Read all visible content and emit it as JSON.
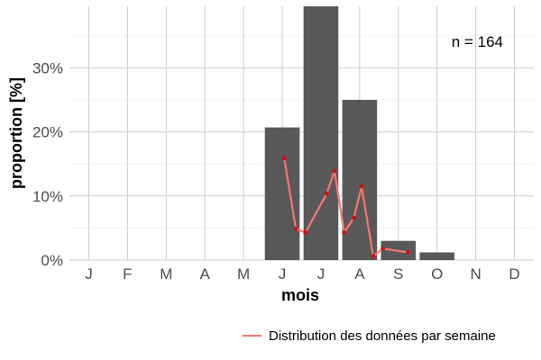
{
  "chart_data": {
    "type": "bar",
    "xlabel": "mois",
    "ylabel": "proportion [%]",
    "annotation": "n = 164",
    "categories": [
      "J",
      "F",
      "M",
      "A",
      "M",
      "J",
      "J",
      "A",
      "S",
      "O",
      "N",
      "D"
    ],
    "values": [
      0,
      0,
      0,
      0,
      0,
      20.7,
      40.2,
      25.0,
      3.0,
      1.2,
      0,
      0
    ],
    "ylim": [
      0,
      39.6
    ],
    "y_ticks": [
      0,
      10,
      20,
      30
    ],
    "y_tick_labels": [
      "0%",
      "10%",
      "20%",
      "30%"
    ],
    "grid": true,
    "legend_position": "bottom-right",
    "bar_color": "#595959",
    "weekly_series": {
      "name": "Distribution des données par semaine",
      "color": "#f8766d",
      "point_color": "#cc1111",
      "x_month": [
        5.05,
        5.35,
        5.6,
        6.15,
        6.35,
        6.6,
        6.85,
        7.05,
        7.35,
        7.6,
        8.25
      ],
      "values": [
        15.9,
        4.9,
        4.3,
        10.4,
        13.9,
        4.3,
        6.6,
        11.5,
        0.6,
        1.8,
        1.2
      ]
    }
  }
}
